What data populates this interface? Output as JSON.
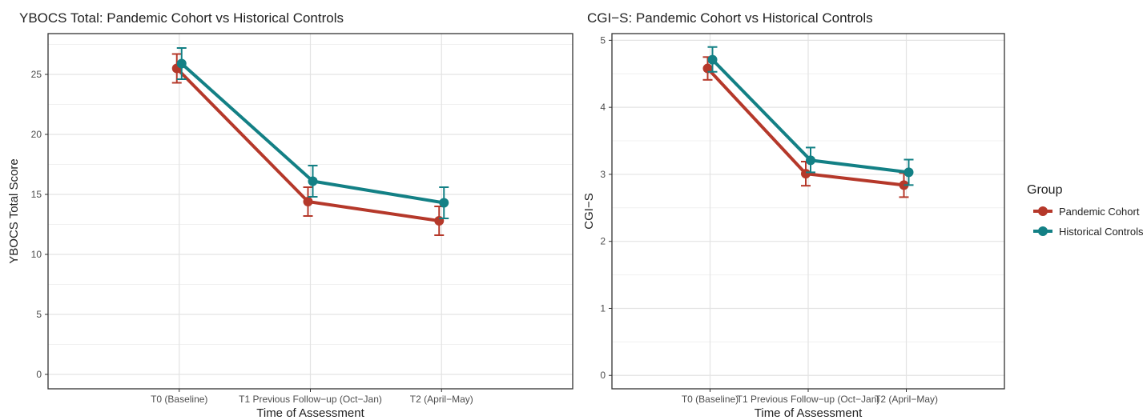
{
  "legend": {
    "title": "Group",
    "placement": "right",
    "entries": [
      {
        "label": "Pandemic Cohort",
        "color": "#b5382a"
      },
      {
        "label": "Historical Controls",
        "color": "#138085"
      }
    ]
  },
  "chart_data": [
    {
      "type": "line",
      "title": "YBOCS Total: Pandemic Cohort vs  Historical Controls",
      "xlabel": "Time of Assessment",
      "ylabel": "YBOCS Total Score",
      "categories": [
        "T0 (Baseline)",
        "T1 Previous Follow−up (Oct−Jan)",
        "T2 (April−May)"
      ],
      "ylim": [
        -1.2,
        28.4
      ],
      "yticks": [
        0,
        5,
        10,
        15,
        20,
        25
      ],
      "grid": true,
      "series": [
        {
          "name": "Pandemic Cohort",
          "color": "#b5382a",
          "values": [
            25.5,
            14.4,
            12.8
          ],
          "err_low": [
            24.3,
            13.2,
            11.6
          ],
          "err_high": [
            26.7,
            15.6,
            14.0
          ]
        },
        {
          "name": "Historical Controls",
          "color": "#138085",
          "values": [
            25.9,
            16.1,
            14.3
          ],
          "err_low": [
            24.6,
            14.8,
            13.0
          ],
          "err_high": [
            27.2,
            17.4,
            15.6
          ]
        }
      ]
    },
    {
      "type": "line",
      "title": "CGI−S: Pandemic Cohort vs  Historical Controls",
      "xlabel": "Time of Assessment",
      "ylabel": "CGI−S",
      "categories": [
        "T0 (Baseline)",
        "T1 Previous Follow−up (Oct−Jan)",
        "T2 (April−May)"
      ],
      "ylim": [
        -0.2,
        5.1
      ],
      "yticks": [
        0,
        1,
        2,
        3,
        4,
        5
      ],
      "grid": true,
      "series": [
        {
          "name": "Pandemic Cohort",
          "color": "#b5382a",
          "values": [
            4.58,
            3.01,
            2.84
          ],
          "err_low": [
            4.41,
            2.83,
            2.66
          ],
          "err_high": [
            4.75,
            3.19,
            3.02
          ]
        },
        {
          "name": "Historical Controls",
          "color": "#138085",
          "values": [
            4.71,
            3.21,
            3.03
          ],
          "err_low": [
            4.53,
            3.03,
            2.84
          ],
          "err_high": [
            4.9,
            3.4,
            3.22
          ]
        }
      ]
    }
  ]
}
